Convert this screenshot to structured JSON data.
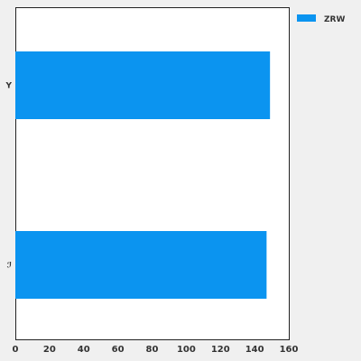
{
  "chart_data": {
    "type": "bar",
    "orientation": "horizontal",
    "categories": [
      "Y",
      "ℐ"
    ],
    "series": [
      {
        "name": "ZRW",
        "values": [
          149,
          147
        ],
        "color": "#0b94f0"
      }
    ],
    "xlim": [
      0,
      160
    ],
    "x_ticks": [
      0,
      20,
      40,
      60,
      80,
      100,
      120,
      140,
      160
    ],
    "grid": false,
    "legend_position": "top-right",
    "title": "",
    "xlabel": "",
    "ylabel": ""
  }
}
